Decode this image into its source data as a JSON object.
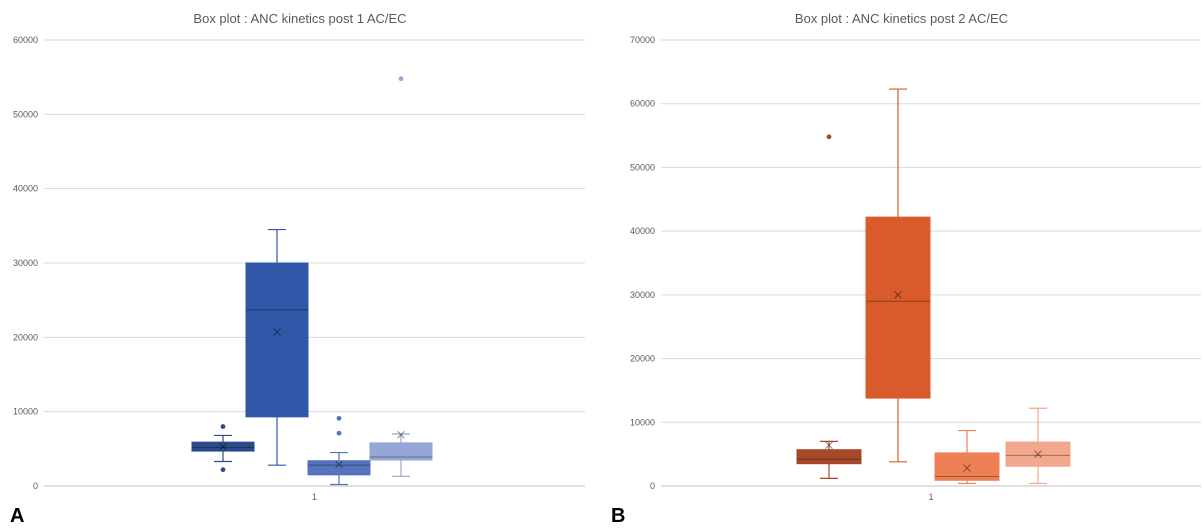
{
  "chart_data": [
    {
      "type": "box",
      "panel_letter": "A",
      "title": "Box plot : ANC kinetics post 1 AC/EC",
      "xlabel": "",
      "ylabel": "",
      "ylim": [
        0,
        60000
      ],
      "yticks": [
        0,
        10000,
        20000,
        30000,
        40000,
        50000,
        60000
      ],
      "categories": [
        "1"
      ],
      "grid": true,
      "series": [
        {
          "color": "#2a4c8c",
          "whisker_low": 3300,
          "q1": 4700,
          "median": 5200,
          "q3": 5900,
          "whisker_high": 6800,
          "mean": 5300,
          "outliers": [
            2200,
            8000
          ]
        },
        {
          "color": "#3158a8",
          "whisker_low": 2800,
          "q1": 9300,
          "median": 23700,
          "q3": 30000,
          "whisker_high": 34500,
          "mean": 20700,
          "outliers": []
        },
        {
          "color": "#5673bd",
          "whisker_low": 200,
          "q1": 1500,
          "median": 2800,
          "q3": 3400,
          "whisker_high": 4500,
          "mean": 2900,
          "outliers": [
            7100,
            9100
          ]
        },
        {
          "color": "#97a6d6",
          "whisker_low": 1300,
          "q1": 3500,
          "median": 3900,
          "q3": 5800,
          "whisker_high": 7000,
          "mean": 6900,
          "outliers": [
            54800
          ]
        }
      ]
    },
    {
      "type": "box",
      "panel_letter": "B",
      "title": "Box plot : ANC kinetics post 2 AC/EC",
      "xlabel": "",
      "ylabel": "",
      "ylim": [
        0,
        70000
      ],
      "yticks": [
        0,
        10000,
        20000,
        30000,
        40000,
        50000,
        60000,
        70000
      ],
      "categories": [
        "1"
      ],
      "grid": true,
      "series": [
        {
          "color": "#a8482a",
          "whisker_low": 1200,
          "q1": 3500,
          "median": 4200,
          "q3": 5700,
          "whisker_high": 7000,
          "mean": 6400,
          "outliers": [
            54800
          ]
        },
        {
          "color": "#d95b2b",
          "whisker_low": 3800,
          "q1": 13800,
          "median": 29000,
          "q3": 42200,
          "whisker_high": 62300,
          "mean": 30000,
          "outliers": []
        },
        {
          "color": "#ee8055",
          "whisker_low": 400,
          "q1": 900,
          "median": 1500,
          "q3": 5200,
          "whisker_high": 8700,
          "mean": 2800,
          "outliers": []
        },
        {
          "color": "#f2a88d",
          "whisker_low": 400,
          "q1": 3100,
          "median": 4800,
          "q3": 6900,
          "whisker_high": 12200,
          "mean": 5000,
          "outliers": []
        }
      ]
    }
  ]
}
